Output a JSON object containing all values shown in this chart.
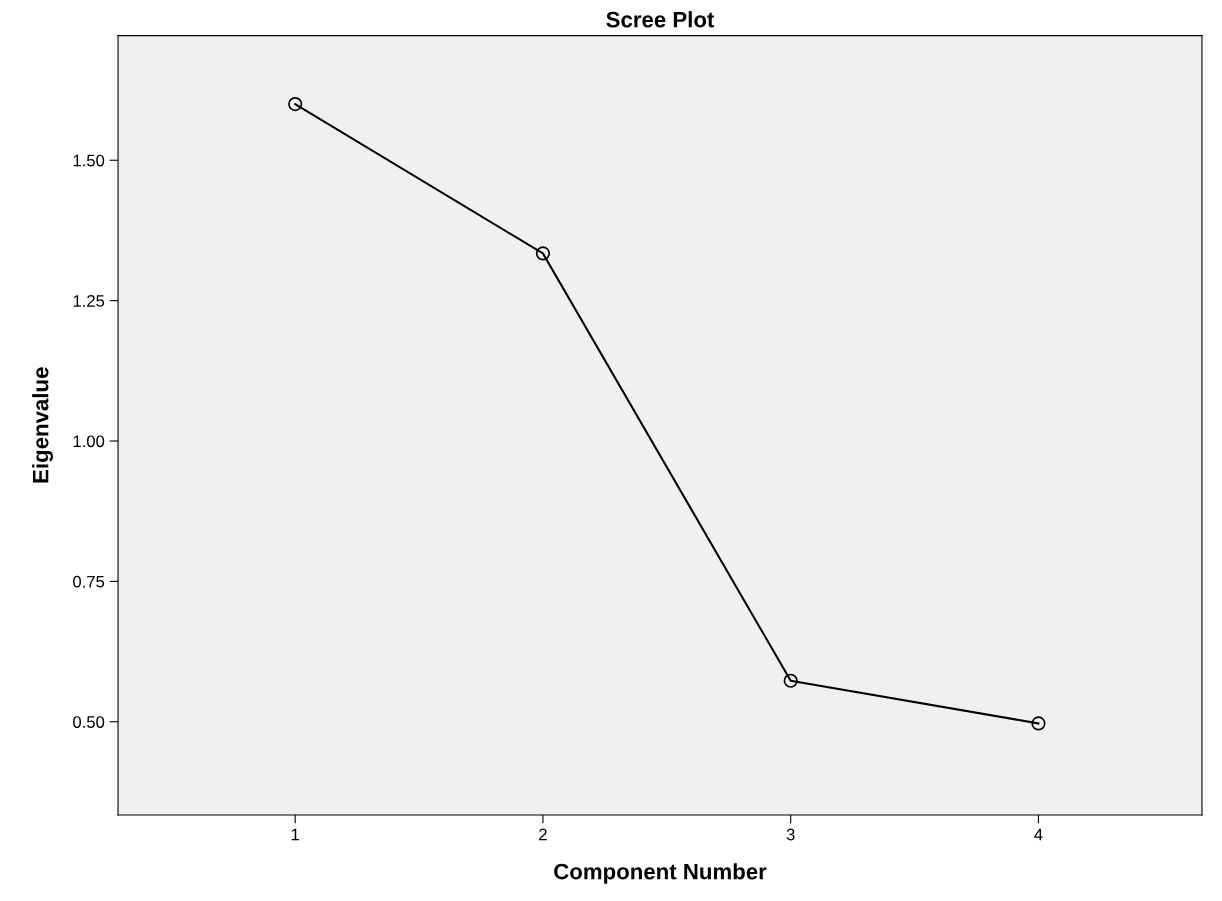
{
  "chart_data": {
    "type": "line",
    "title": "Scree Plot",
    "xlabel": "Component Number",
    "ylabel": "Eigenvalue",
    "x": [
      1,
      2,
      3,
      4
    ],
    "series": [
      {
        "color": "#000000",
        "values": [
          1.6,
          1.334,
          0.573,
          0.497
        ]
      }
    ],
    "xlim": [
      0.285,
      4.66
    ],
    "xticks": [
      1,
      2,
      3,
      4
    ],
    "ylim": [
      0.334,
      1.722
    ],
    "yticks": [
      {
        "value": 0.5,
        "label": "0.50"
      },
      {
        "value": 0.75,
        "label": "0.75"
      },
      {
        "value": 1.0,
        "label": "1.00"
      },
      {
        "value": 1.25,
        "label": "1.25"
      },
      {
        "value": 1.5,
        "label": "1.50"
      }
    ],
    "grid": false,
    "marker": "circle",
    "line_style": "solid"
  }
}
